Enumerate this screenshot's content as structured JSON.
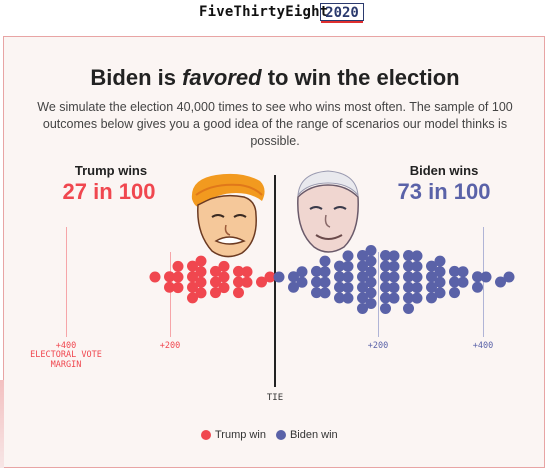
{
  "header": {
    "brand": "FiveThirtyEight",
    "year": "2020"
  },
  "headline": {
    "pre": "Biden is ",
    "emph": "favored",
    "post": " to win the election"
  },
  "deck": "We simulate the election 40,000 times to see who wins most often. The sample of 100 outcomes below gives you a good idea of the range of scenarios our model thinks is possible.",
  "trump": {
    "label": "Trump wins",
    "count": "27 in 100"
  },
  "biden": {
    "label": "Biden wins",
    "count": "73 in 100"
  },
  "axis": {
    "left400": "+400",
    "left400_sub": "ELECTORAL VOTE MARGIN",
    "left200": "+200",
    "right200": "+200",
    "right400": "+400",
    "tie": "TIE"
  },
  "legend": {
    "trump": "Trump win",
    "biden": "Biden win"
  },
  "colors": {
    "trump": "#f0474f",
    "biden": "#5a62a8",
    "frame": "#e8a4a4"
  },
  "outcomes": {
    "trump_wins": 27,
    "biden_wins": 73,
    "total": 100
  }
}
